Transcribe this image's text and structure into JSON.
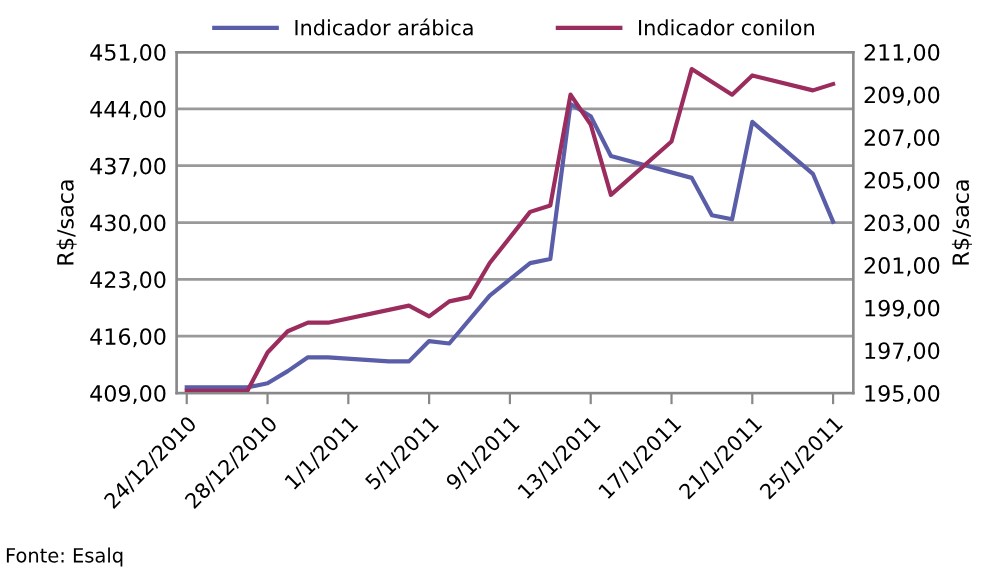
{
  "chart_data": {
    "type": "line",
    "ylabel": "R$/saca",
    "y2label": "R$/saca",
    "series": [
      {
        "name": "Indicador arábica",
        "color": "#5a5ea8",
        "x": [
          "2010-12-24",
          "2010-12-27",
          "2010-12-28",
          "2010-12-29",
          "2010-12-30",
          "2010-12-31",
          "2011-01-03",
          "2011-01-04",
          "2011-01-05",
          "2011-01-06",
          "2011-01-08",
          "2011-01-10",
          "2011-01-11",
          "2011-01-12",
          "2011-01-13",
          "2011-01-14",
          "2011-01-18",
          "2011-01-19",
          "2011-01-20",
          "2011-01-21",
          "2011-01-24",
          "2011-01-25"
        ],
        "values": [
          409.7,
          409.7,
          410.2,
          411.7,
          413.4,
          413.4,
          412.9,
          412.9,
          415.4,
          415.1,
          421,
          425,
          425.5,
          444.6,
          443.1,
          438.2,
          435.5,
          430.9,
          430.4,
          442.4,
          436,
          430.1
        ]
      },
      {
        "name": "Indicador conilon",
        "color": "#9b2d5e",
        "axis": "y2",
        "x": [
          "2010-12-24",
          "2010-12-27",
          "2010-12-28",
          "2010-12-29",
          "2010-12-30",
          "2010-12-31",
          "2011-01-04",
          "2011-01-05",
          "2011-01-06",
          "2011-01-07",
          "2011-01-08",
          "2011-01-10",
          "2011-01-11",
          "2011-01-12",
          "2011-01-13",
          "2011-01-14",
          "2011-01-17",
          "2011-01-18",
          "2011-01-20",
          "2011-01-21",
          "2011-01-24",
          "2011-01-25"
        ],
        "values": [
          195.1,
          195.1,
          196.9,
          197.9,
          198.3,
          198.3,
          199.1,
          198.6,
          199.3,
          199.5,
          201.1,
          203.5,
          203.8,
          209.0,
          207.6,
          204.3,
          206.8,
          210.2,
          209.0,
          209.9,
          209.2,
          209.5
        ]
      }
    ],
    "xlim": [
      "2010-12-23T12:00",
      "2011-01-26"
    ],
    "xticks": [
      {
        "value": "2010-12-24",
        "label": "24/12/2010"
      },
      {
        "value": "2010-12-28",
        "label": "28/12/2010"
      },
      {
        "value": "2011-01-01",
        "label": "1/1/2011"
      },
      {
        "value": "2011-01-05",
        "label": "5/1/2011"
      },
      {
        "value": "2011-01-09",
        "label": "9/1/2011"
      },
      {
        "value": "2011-01-13",
        "label": "13/1/2011"
      },
      {
        "value": "2011-01-17",
        "label": "17/1/2011"
      },
      {
        "value": "2011-01-21",
        "label": "21/1/2011"
      },
      {
        "value": "2011-01-25",
        "label": "25/1/2011"
      }
    ],
    "ylim": [
      409,
      451
    ],
    "yticks": [
      {
        "value": 409,
        "label": "409,00"
      },
      {
        "value": 416,
        "label": "416,00"
      },
      {
        "value": 423,
        "label": "423,00"
      },
      {
        "value": 430,
        "label": "430,00"
      },
      {
        "value": 437,
        "label": "437,00"
      },
      {
        "value": 444,
        "label": "444,00"
      },
      {
        "value": 451,
        "label": "451,00"
      }
    ],
    "y2lim": [
      195,
      211
    ],
    "y2ticks": [
      {
        "value": 195,
        "label": "195,00"
      },
      {
        "value": 197,
        "label": "197,00"
      },
      {
        "value": 199,
        "label": "199,00"
      },
      {
        "value": 201,
        "label": "201,00"
      },
      {
        "value": 203,
        "label": "203,00"
      },
      {
        "value": 205,
        "label": "205,00"
      },
      {
        "value": 207,
        "label": "207,00"
      },
      {
        "value": 209,
        "label": "209,00"
      },
      {
        "value": 211,
        "label": "211,00"
      }
    ],
    "grid": "y",
    "legend": "top",
    "marker": "none",
    "line_style": "solid",
    "annotations": [
      "Fonte: Esalq"
    ]
  }
}
